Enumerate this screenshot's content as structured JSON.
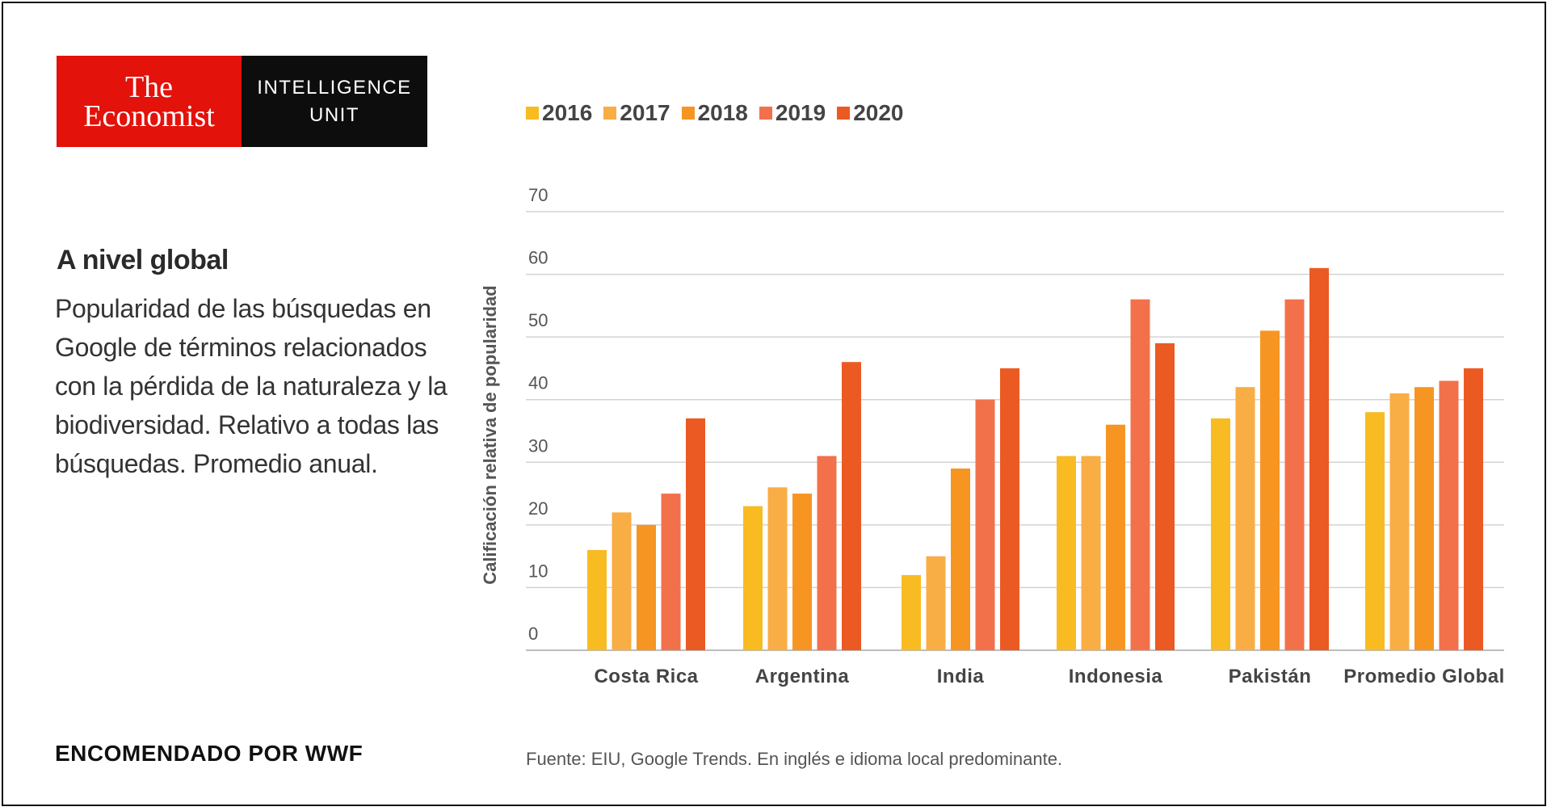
{
  "logo": {
    "brand_line1": "The",
    "brand_line2": "Economist",
    "unit_line1": "INTELLIGENCE",
    "unit_line2": "UNIT"
  },
  "headline": "A nivel global",
  "description": "Popularidad de las búsquedas en Google de términos relacionados con la pérdida de la naturaleza y la biodiversidad. Relativo a todas las búsquedas. Promedio anual.",
  "commissioned_by": "ENCOMENDADO POR WWF",
  "source": "Fuente: EIU, Google Trends. En inglés e idioma local predominante.",
  "colors": {
    "2016": "#f9bb22",
    "2017": "#f9ad45",
    "2018": "#f79523",
    "2019": "#f2714b",
    "2020": "#ec5a23",
    "grid": "#d3d3d3",
    "brand_red": "#e3120b"
  },
  "chart_data": {
    "type": "bar",
    "title": "",
    "xlabel": "",
    "ylabel": "Calificación relativa de popularidad",
    "ylim": [
      0,
      70
    ],
    "yticks": [
      0,
      10,
      20,
      30,
      40,
      50,
      60,
      70
    ],
    "grid": true,
    "legend_position": "top",
    "categories": [
      "Costa Rica",
      "Argentina",
      "India",
      "Indonesia",
      "Pakistán",
      "Promedio Global"
    ],
    "series": [
      {
        "name": "2016",
        "values": [
          16,
          23,
          12,
          31,
          37,
          38
        ]
      },
      {
        "name": "2017",
        "values": [
          22,
          26,
          15,
          31,
          42,
          41
        ]
      },
      {
        "name": "2018",
        "values": [
          20,
          25,
          29,
          36,
          51,
          42
        ]
      },
      {
        "name": "2019",
        "values": [
          25,
          31,
          40,
          56,
          56,
          43
        ]
      },
      {
        "name": "2020",
        "values": [
          37,
          46,
          45,
          49,
          61,
          45
        ]
      }
    ]
  }
}
